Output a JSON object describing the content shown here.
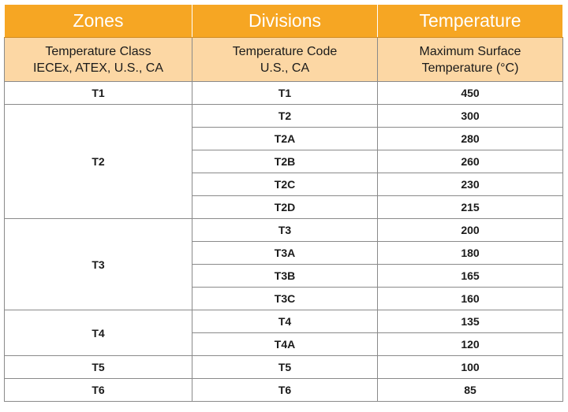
{
  "table": {
    "header": [
      "Zones",
      "Divisions",
      "Temperature"
    ],
    "subheader": [
      [
        "Temperature Class",
        "IECEx, ATEX, U.S., CA"
      ],
      [
        "Temperature Code",
        "U.S., CA"
      ],
      [
        "Maximum Surface",
        "Temperature (°C)"
      ]
    ],
    "groups": [
      {
        "zone": "T1",
        "rows": [
          {
            "code": "T1",
            "temp": 450
          }
        ]
      },
      {
        "zone": "T2",
        "rows": [
          {
            "code": "T2",
            "temp": 300
          },
          {
            "code": "T2A",
            "temp": 280
          },
          {
            "code": "T2B",
            "temp": 260
          },
          {
            "code": "T2C",
            "temp": 230
          },
          {
            "code": "T2D",
            "temp": 215
          }
        ]
      },
      {
        "zone": "T3",
        "rows": [
          {
            "code": "T3",
            "temp": 200
          },
          {
            "code": "T3A",
            "temp": 180
          },
          {
            "code": "T3B",
            "temp": 165
          },
          {
            "code": "T3C",
            "temp": 160
          }
        ]
      },
      {
        "zone": "T4",
        "rows": [
          {
            "code": "T4",
            "temp": 135
          },
          {
            "code": "T4A",
            "temp": 120
          }
        ]
      },
      {
        "zone": "T5",
        "rows": [
          {
            "code": "T5",
            "temp": 100
          }
        ]
      },
      {
        "zone": "T6",
        "rows": [
          {
            "code": "T6",
            "temp": 85
          }
        ]
      }
    ]
  }
}
